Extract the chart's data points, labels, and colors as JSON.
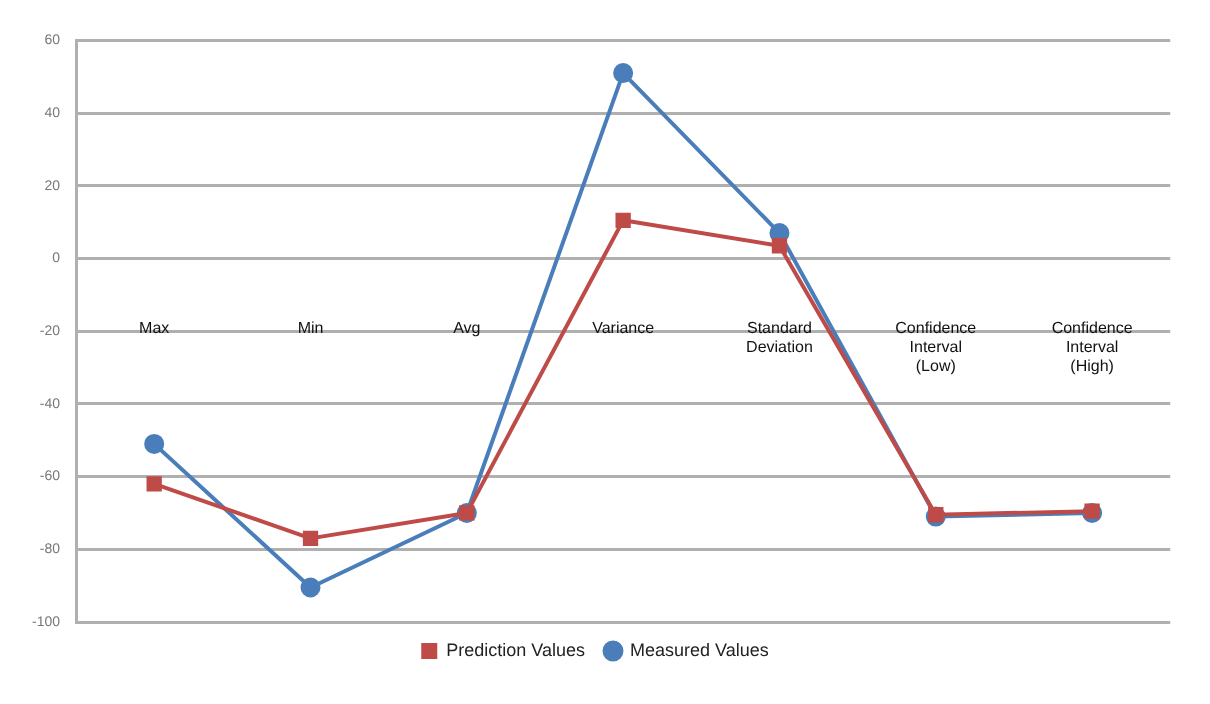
{
  "chart_data": {
    "type": "line",
    "categories": [
      "Max",
      "Min",
      "Avg",
      "Variance",
      "Standard Deviation",
      "Confidence Interval (Low)",
      "Confidence Interval (High)"
    ],
    "series": [
      {
        "name": "Measured Values",
        "color": "#4a7ebb",
        "marker": "circle",
        "values": [
          -51,
          -90.5,
          -70,
          51,
          7,
          -71,
          -70
        ]
      },
      {
        "name": "Prediction Values",
        "color": "#be4b48",
        "marker": "square",
        "values": [
          -62,
          -77,
          -70,
          10.5,
          3.5,
          -70.5,
          -69.5
        ]
      }
    ],
    "ylim": [
      -100,
      60
    ],
    "yticks": [
      -100,
      -80,
      -60,
      -40,
      -20,
      0,
      20,
      40,
      60
    ],
    "grid": "y",
    "legend": "bottom"
  }
}
